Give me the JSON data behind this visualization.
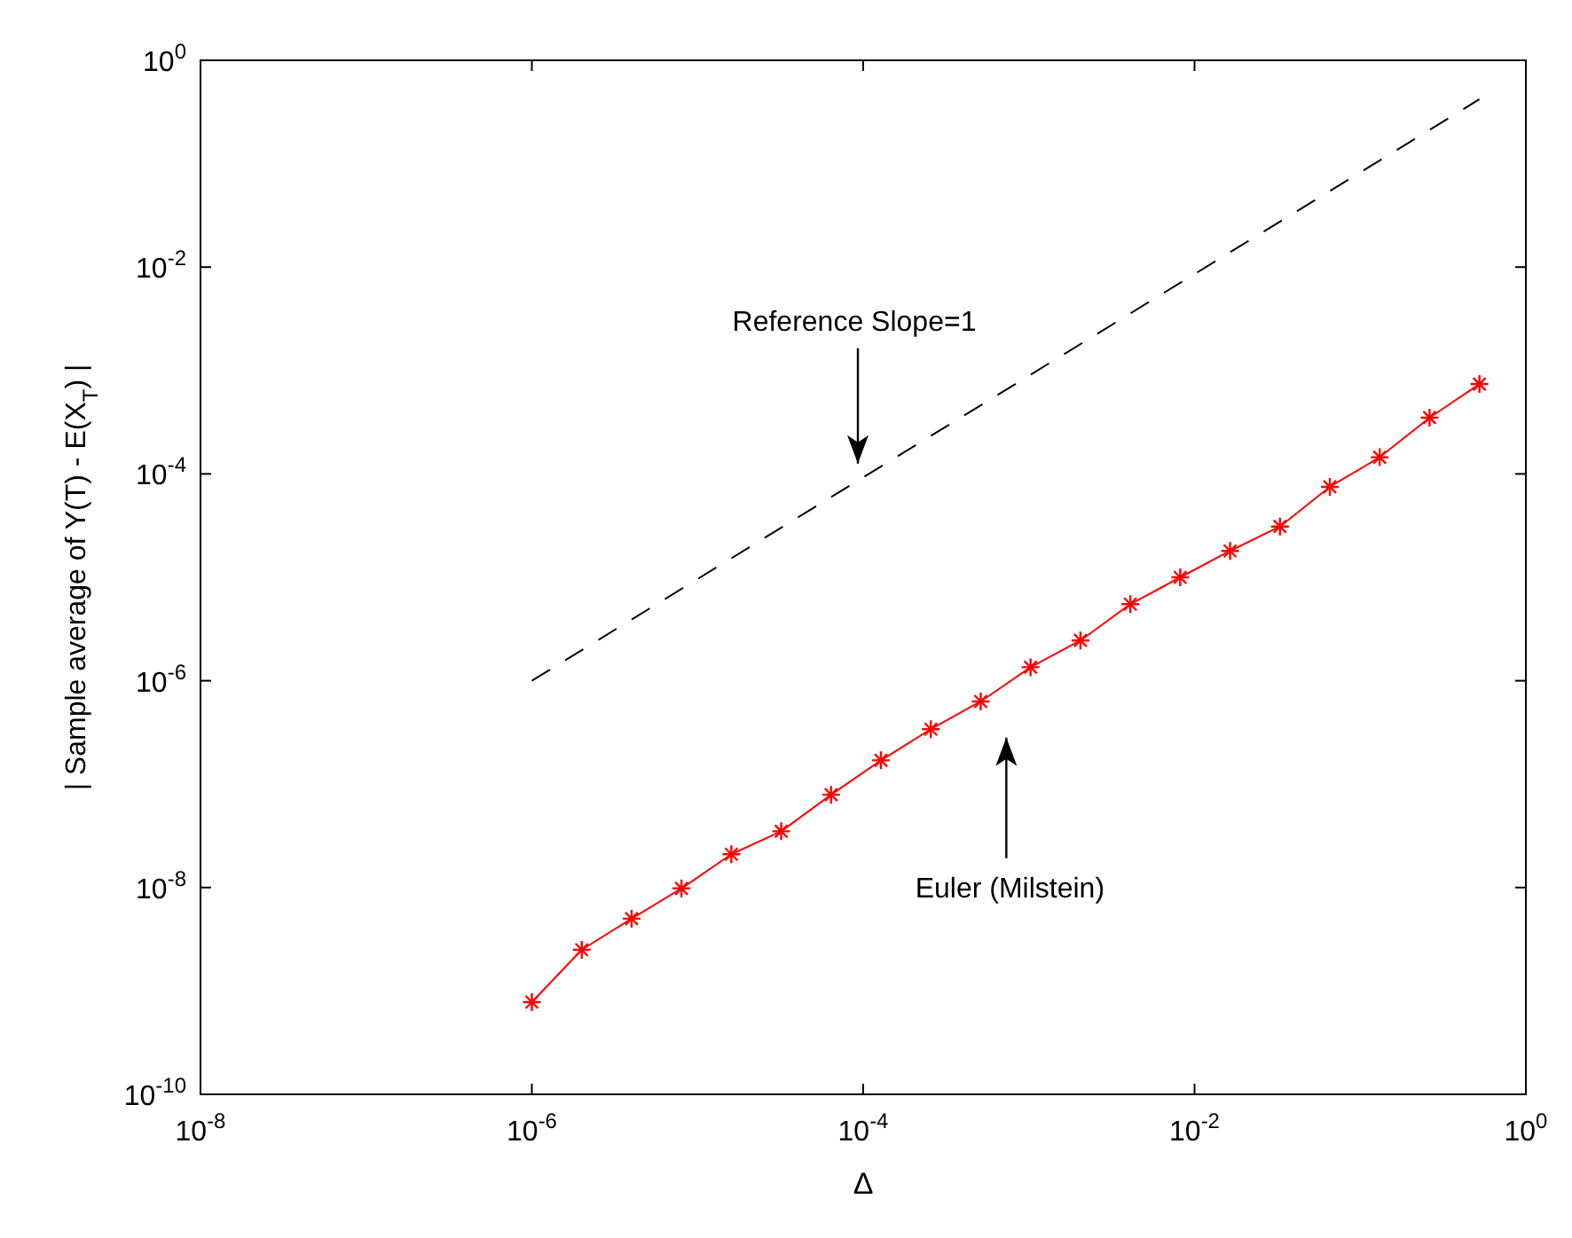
{
  "chart_data": {
    "type": "line",
    "xlabel": "Δ",
    "ylabel": "| Sample average of Y(T) - E(X$_{T}$) |",
    "log": "xy",
    "xlim": [
      1e-08,
      1
    ],
    "ylim": [
      1e-10,
      1
    ],
    "xticks": [
      {
        "value": 1e-08,
        "label": "10$^{-8}$"
      },
      {
        "value": 1e-06,
        "label": "10$^{-6}$"
      },
      {
        "value": 0.0001,
        "label": "10$^{-4}$"
      },
      {
        "value": 0.01,
        "label": "10$^{-2}$"
      },
      {
        "value": 1,
        "label": "10$^{0}$"
      }
    ],
    "yticks": [
      {
        "value": 1e-10,
        "label": "10$^{-10}$"
      },
      {
        "value": 1e-08,
        "label": "10$^{-8}$"
      },
      {
        "value": 1e-06,
        "label": "10$^{-6}$"
      },
      {
        "value": 0.0001,
        "label": "10$^{-4}$"
      },
      {
        "value": 0.01,
        "label": "10$^{-2}$"
      },
      {
        "value": 1,
        "label": "10$^{0}$"
      }
    ],
    "grid": false,
    "series": [
      {
        "color": "#000000",
        "line_style": "dashed",
        "marker": "none",
        "x": [
          1e-06,
          0.524288
        ],
        "values": [
          1e-06,
          0.42
        ]
      },
      {
        "color": "#ff0000",
        "line_style": "solid",
        "marker": "cross",
        "x": [
          1e-06,
          2e-06,
          4e-06,
          8e-06,
          1.6e-05,
          3.2e-05,
          6.4e-05,
          0.000128,
          0.000256,
          0.000512,
          0.001024,
          0.002048,
          0.004096,
          0.008192,
          0.016384,
          0.032768,
          0.065536,
          0.131072,
          0.262144,
          0.524288
        ],
        "values": [
          7.8e-10,
          2.5e-09,
          5e-09,
          9.8e-09,
          2.1e-08,
          3.5e-08,
          7.9e-08,
          1.7e-07,
          3.4e-07,
          6.3e-07,
          1.35e-06,
          2.45e-06,
          5.5e-06,
          1e-05,
          1.8e-05,
          3.1e-05,
          7.5e-05,
          0.000145,
          0.00035,
          0.00074
        ]
      }
    ],
    "annotations": [
      "Reference Slope=1",
      "Euler (Milstein)"
    ]
  }
}
